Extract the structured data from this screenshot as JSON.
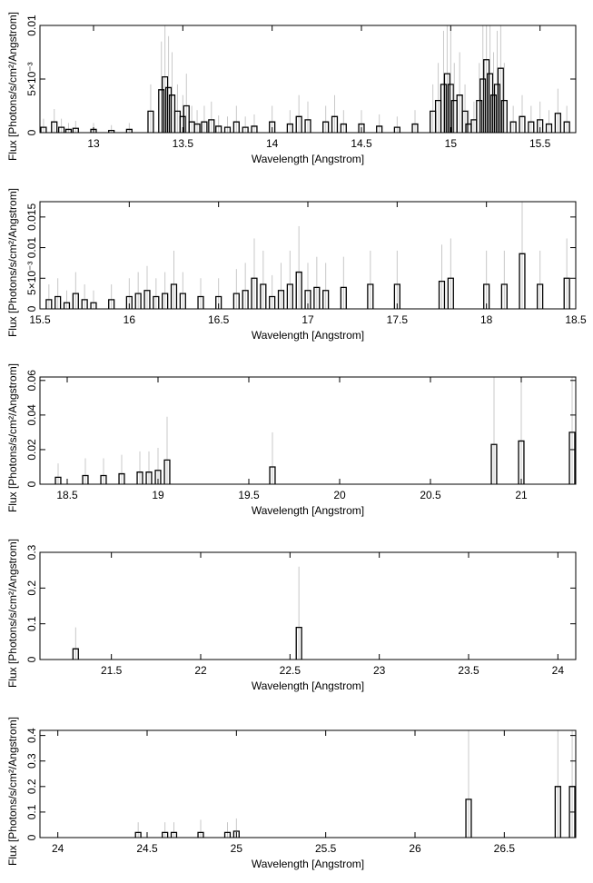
{
  "chart_data": [
    {
      "type": "line",
      "xlabel": "Wavelength [Angstrom]",
      "ylabel": "Flux [Photons/s/cm²/Angstrom]",
      "xlim": [
        12.7,
        15.7
      ],
      "ylim": [
        0,
        0.01
      ],
      "xticks": [
        {
          "v": 13,
          "label": "13"
        },
        {
          "v": 13.5,
          "label": "13.5"
        },
        {
          "v": 14,
          "label": "14"
        },
        {
          "v": 14.5,
          "label": "14.5"
        },
        {
          "v": 15,
          "label": "15"
        },
        {
          "v": 15.5,
          "label": "15.5"
        }
      ],
      "yticks": [
        {
          "v": 0,
          "label": "0"
        },
        {
          "v": 0.005,
          "label": "5×10⁻³"
        },
        {
          "v": 0.01,
          "label": "0.01"
        }
      ],
      "grid": false,
      "series": [
        {
          "style": "histogram",
          "x": [
            12.72,
            12.78,
            12.82,
            12.86,
            12.9,
            13.0,
            13.1,
            13.2,
            13.32,
            13.38,
            13.4,
            13.42,
            13.44,
            13.47,
            13.5,
            13.52,
            13.55,
            13.58,
            13.62,
            13.66,
            13.7,
            13.75,
            13.8,
            13.85,
            13.9,
            14.0,
            14.1,
            14.15,
            14.2,
            14.3,
            14.35,
            14.4,
            14.5,
            14.6,
            14.7,
            14.8,
            14.9,
            14.93,
            14.96,
            14.98,
            15.0,
            15.02,
            15.05,
            15.08,
            15.1,
            15.13,
            15.16,
            15.18,
            15.2,
            15.22,
            15.24,
            15.26,
            15.28,
            15.3,
            15.35,
            15.4,
            15.45,
            15.5,
            15.55,
            15.6,
            15.65
          ],
          "y": [
            0.0005,
            0.001,
            0.0005,
            0.0003,
            0.0004,
            0.0003,
            0.0002,
            0.0003,
            0.002,
            0.004,
            0.0052,
            0.0042,
            0.0035,
            0.002,
            0.0015,
            0.0025,
            0.001,
            0.0008,
            0.001,
            0.0012,
            0.0006,
            0.0005,
            0.001,
            0.0005,
            0.0006,
            0.001,
            0.0008,
            0.0015,
            0.0012,
            0.001,
            0.0015,
            0.0008,
            0.0008,
            0.0006,
            0.0005,
            0.0008,
            0.002,
            0.003,
            0.0045,
            0.0055,
            0.0045,
            0.003,
            0.0035,
            0.002,
            0.0008,
            0.0012,
            0.003,
            0.005,
            0.0068,
            0.0055,
            0.0035,
            0.0045,
            0.006,
            0.003,
            0.001,
            0.0015,
            0.001,
            0.0012,
            0.0008,
            0.0018,
            0.001
          ],
          "err": [
            0.0008,
            0.0012,
            0.0008,
            0.0006,
            0.0007,
            0.0006,
            0.0005,
            0.0006,
            0.0025,
            0.0045,
            0.0055,
            0.0048,
            0.004,
            0.0025,
            0.002,
            0.003,
            0.0015,
            0.0013,
            0.0015,
            0.0017,
            0.001,
            0.001,
            0.0015,
            0.001,
            0.0011,
            0.0015,
            0.0013,
            0.002,
            0.0017,
            0.0015,
            0.002,
            0.0013,
            0.0013,
            0.0011,
            0.001,
            0.0013,
            0.0025,
            0.0035,
            0.005,
            0.006,
            0.005,
            0.0035,
            0.004,
            0.0025,
            0.0013,
            0.0017,
            0.0035,
            0.0055,
            0.0075,
            0.006,
            0.004,
            0.005,
            0.0065,
            0.0035,
            0.0015,
            0.002,
            0.0015,
            0.0017,
            0.0013,
            0.0023,
            0.0015
          ]
        }
      ]
    },
    {
      "type": "line",
      "xlabel": "Wavelength [Angstrom]",
      "ylabel": "Flux [Photons/s/cm²/Angstrom]",
      "xlim": [
        15.5,
        18.5
      ],
      "ylim": [
        0,
        0.0175
      ],
      "xticks": [
        {
          "v": 15.5,
          "label": "15.5"
        },
        {
          "v": 16,
          "label": "16"
        },
        {
          "v": 16.5,
          "label": "16.5"
        },
        {
          "v": 17,
          "label": "17"
        },
        {
          "v": 17.5,
          "label": "17.5"
        },
        {
          "v": 18,
          "label": "18"
        },
        {
          "v": 18.5,
          "label": "18.5"
        }
      ],
      "yticks": [
        {
          "v": 0,
          "label": "0"
        },
        {
          "v": 0.005,
          "label": "5×10⁻³"
        },
        {
          "v": 0.01,
          "label": "0.01"
        },
        {
          "v": 0.015,
          "label": "0.015"
        }
      ],
      "grid": false,
      "series": [
        {
          "style": "histogram",
          "x": [
            15.55,
            15.6,
            15.65,
            15.7,
            15.75,
            15.8,
            15.9,
            16.0,
            16.05,
            16.1,
            16.15,
            16.2,
            16.25,
            16.3,
            16.4,
            16.5,
            16.6,
            16.65,
            16.7,
            16.75,
            16.8,
            16.85,
            16.9,
            16.95,
            17.0,
            17.05,
            17.1,
            17.2,
            17.35,
            17.5,
            17.75,
            17.8,
            18.0,
            18.1,
            18.2,
            18.3,
            18.45
          ],
          "y": [
            0.0015,
            0.002,
            0.001,
            0.0025,
            0.0015,
            0.001,
            0.0015,
            0.002,
            0.0025,
            0.003,
            0.002,
            0.0025,
            0.004,
            0.0025,
            0.002,
            0.002,
            0.0025,
            0.003,
            0.005,
            0.004,
            0.002,
            0.003,
            0.004,
            0.006,
            0.003,
            0.0035,
            0.003,
            0.0035,
            0.004,
            0.004,
            0.0045,
            0.005,
            0.004,
            0.004,
            0.009,
            0.004,
            0.005
          ],
          "err": [
            0.0025,
            0.003,
            0.002,
            0.0035,
            0.0025,
            0.002,
            0.0025,
            0.003,
            0.0035,
            0.004,
            0.003,
            0.0035,
            0.0055,
            0.0035,
            0.003,
            0.003,
            0.004,
            0.0045,
            0.0065,
            0.0055,
            0.0035,
            0.0045,
            0.0055,
            0.0075,
            0.0045,
            0.005,
            0.0045,
            0.005,
            0.0055,
            0.0055,
            0.006,
            0.0065,
            0.0055,
            0.0055,
            0.0105,
            0.0055,
            0.0065
          ]
        }
      ]
    },
    {
      "type": "line",
      "xlabel": "Wavelength [Angstrom]",
      "ylabel": "Flux [Photons/s/cm²/Angstrom]",
      "xlim": [
        18.35,
        21.3
      ],
      "ylim": [
        0,
        0.062
      ],
      "xticks": [
        {
          "v": 18.5,
          "label": "18.5"
        },
        {
          "v": 19,
          "label": "19"
        },
        {
          "v": 19.5,
          "label": "19.5"
        },
        {
          "v": 20,
          "label": "20"
        },
        {
          "v": 20.5,
          "label": "20.5"
        },
        {
          "v": 21,
          "label": "21"
        }
      ],
      "yticks": [
        {
          "v": 0,
          "label": "0"
        },
        {
          "v": 0.02,
          "label": "0.02"
        },
        {
          "v": 0.04,
          "label": "0.04"
        },
        {
          "v": 0.06,
          "label": "0.06"
        }
      ],
      "grid": false,
      "series": [
        {
          "style": "histogram",
          "x": [
            18.45,
            18.6,
            18.7,
            18.8,
            18.9,
            18.95,
            19.0,
            19.05,
            19.63,
            20.85,
            21.0,
            21.28
          ],
          "y": [
            0.004,
            0.005,
            0.005,
            0.006,
            0.007,
            0.007,
            0.008,
            0.014,
            0.01,
            0.023,
            0.025,
            0.03
          ],
          "err": [
            0.008,
            0.01,
            0.01,
            0.011,
            0.012,
            0.012,
            0.013,
            0.025,
            0.02,
            0.045,
            0.05,
            0.05
          ]
        }
      ]
    },
    {
      "type": "line",
      "xlabel": "Wavelength [Angstrom]",
      "ylabel": "Flux [Photons/s/cm²/Angstrom]",
      "xlim": [
        21.1,
        24.1
      ],
      "ylim": [
        0,
        0.3
      ],
      "xticks": [
        {
          "v": 21.5,
          "label": "21.5"
        },
        {
          "v": 22,
          "label": "22"
        },
        {
          "v": 22.5,
          "label": "22.5"
        },
        {
          "v": 23,
          "label": "23"
        },
        {
          "v": 23.5,
          "label": "23.5"
        },
        {
          "v": 24,
          "label": "24"
        }
      ],
      "yticks": [
        {
          "v": 0,
          "label": "0"
        },
        {
          "v": 0.1,
          "label": "0.1"
        },
        {
          "v": 0.2,
          "label": "0.2"
        },
        {
          "v": 0.3,
          "label": "0.3"
        }
      ],
      "grid": false,
      "series": [
        {
          "style": "histogram",
          "x": [
            21.3,
            22.55
          ],
          "y": [
            0.03,
            0.09
          ],
          "err": [
            0.06,
            0.17
          ]
        }
      ]
    },
    {
      "type": "line",
      "xlabel": "Wavelength [Angstrom]",
      "ylabel": "Flux [Photons/s/cm²/Angstrom]",
      "xlim": [
        23.9,
        26.9
      ],
      "ylim": [
        0,
        0.42
      ],
      "xticks": [
        {
          "v": 24,
          "label": "24"
        },
        {
          "v": 24.5,
          "label": "24.5"
        },
        {
          "v": 25,
          "label": "25"
        },
        {
          "v": 25.5,
          "label": "25.5"
        },
        {
          "v": 26,
          "label": "26"
        },
        {
          "v": 26.5,
          "label": "26.5"
        }
      ],
      "yticks": [
        {
          "v": 0,
          "label": "0"
        },
        {
          "v": 0.1,
          "label": "0.1"
        },
        {
          "v": 0.2,
          "label": "0.2"
        },
        {
          "v": 0.3,
          "label": "0.3"
        },
        {
          "v": 0.4,
          "label": "0.4"
        }
      ],
      "grid": false,
      "series": [
        {
          "style": "histogram",
          "x": [
            24.45,
            24.6,
            24.65,
            24.8,
            24.95,
            25.0,
            26.3,
            26.8,
            26.88
          ],
          "y": [
            0.02,
            0.02,
            0.02,
            0.02,
            0.02,
            0.025,
            0.15,
            0.2,
            0.2
          ],
          "err": [
            0.04,
            0.04,
            0.04,
            0.05,
            0.04,
            0.05,
            0.29,
            0.39,
            0.39
          ]
        }
      ]
    }
  ],
  "style": {
    "data_color": "#000000",
    "error_color": "#c8c8c8",
    "axis_color": "#000000"
  }
}
